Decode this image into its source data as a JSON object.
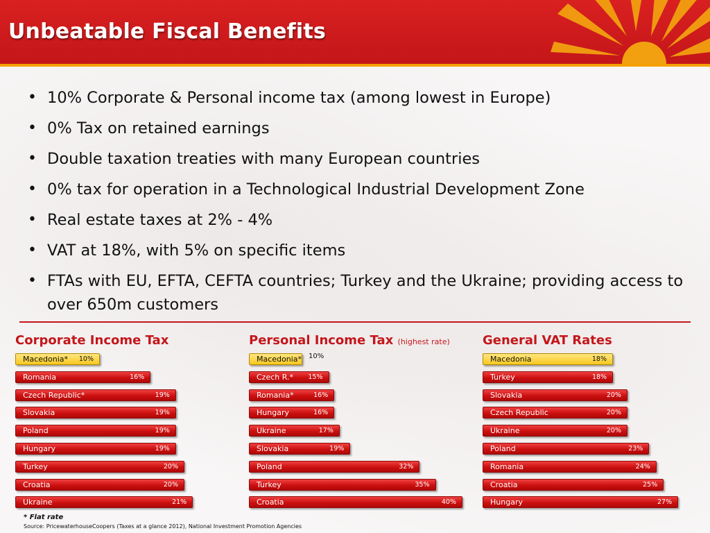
{
  "title": "Unbeatable Fiscal Benefits",
  "bullets": [
    "10% Corporate & Personal income tax (among lowest in Europe)",
    "0% Tax on retained earnings",
    "Double taxation treaties with many European countries",
    "0% tax for operation in a Technological Industrial Development Zone",
    "Real estate taxes at 2% - 4%",
    "VAT at 18%, with 5% on specific items",
    "FTAs with EU, EFTA, CEFTA countries; Turkey and the Ukraine; providing access to over 650m customers"
  ],
  "colors": {
    "accent": "#c4161a",
    "highlight": "#f8c820",
    "header_border": "#f4a000"
  },
  "footnote": "* Flat rate",
  "source": "Source: PricewaterhouseCoopers (Taxes at a glance 2012), National Investment Promotion Agencies",
  "chart_data": [
    {
      "type": "bar",
      "orientation": "horizontal",
      "title": "Corporate Income Tax",
      "categories": [
        "Macedonia*",
        "Romania",
        "Czech Republic*",
        "Slovakia",
        "Poland",
        "Hungary",
        "Turkey",
        "Croatia",
        "Ukraine"
      ],
      "values": [
        10,
        16,
        19,
        19,
        19,
        19,
        20,
        20,
        21
      ],
      "value_labels": [
        "10%",
        "16%",
        "19%",
        "19%",
        "19%",
        "19%",
        "20%",
        "20%",
        "21%"
      ],
      "highlight": "Macedonia*"
    },
    {
      "type": "bar",
      "orientation": "horizontal",
      "title": "Personal Income Tax",
      "subtitle": "(highest rate)",
      "categories": [
        "Macedonia*",
        "Czech R.*",
        "Romania*",
        "Hungary",
        "Ukraine",
        "Slovakia",
        "Poland",
        "Turkey",
        "Croatia"
      ],
      "values": [
        10,
        15,
        16,
        16,
        17,
        19,
        32,
        35,
        40
      ],
      "value_labels": [
        "10%",
        "15%",
        "16%",
        "16%",
        "17%",
        "19%",
        "32%",
        "35%",
        "40%"
      ],
      "highlight": "Macedonia*"
    },
    {
      "type": "bar",
      "orientation": "horizontal",
      "title": "General VAT Rates",
      "categories": [
        "Macedonia",
        "Turkey",
        "Slovakia",
        "Czech Republic",
        "Ukraine",
        "Poland",
        "Romania",
        "Croatia",
        "Hungary"
      ],
      "values": [
        18,
        18,
        20,
        20,
        20,
        23,
        24,
        25,
        27
      ],
      "value_labels": [
        "18%",
        "18%",
        "20%",
        "20%",
        "20%",
        "23%",
        "24%",
        "25%",
        "27%"
      ],
      "highlight": "Macedonia"
    }
  ]
}
